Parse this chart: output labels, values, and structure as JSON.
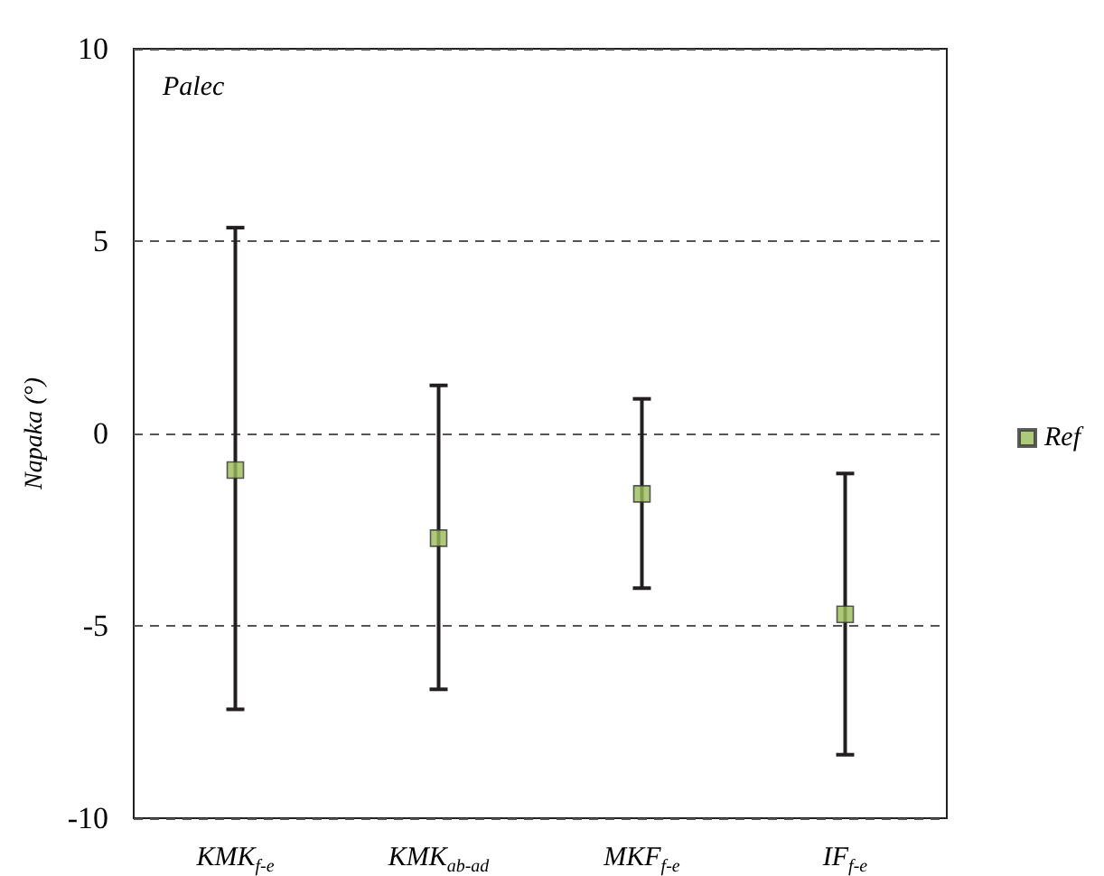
{
  "chart_data": {
    "type": "scatter",
    "title": "Palec",
    "ylabel": "Napaka (°)",
    "categories": [
      "KMK$_{f-e}$",
      "KMK$_{ab-ad}$",
      "MKF$_{f-e}$",
      "IF$_{f-e}$"
    ],
    "series": [
      {
        "name": "Ref",
        "color": "#9bbb59",
        "values": [
          -0.95,
          -2.72,
          -1.57,
          -4.7
        ],
        "errors": [
          [
            -7.17,
            5.35
          ],
          [
            -6.65,
            1.25
          ],
          [
            -4.02,
            0.9
          ],
          [
            -8.35,
            -1.04
          ]
        ]
      }
    ],
    "ylim": [
      -10,
      10
    ],
    "yticks": [
      -10,
      -5,
      0,
      5,
      10
    ],
    "grid": "y",
    "legend": "right",
    "marker": "square"
  }
}
